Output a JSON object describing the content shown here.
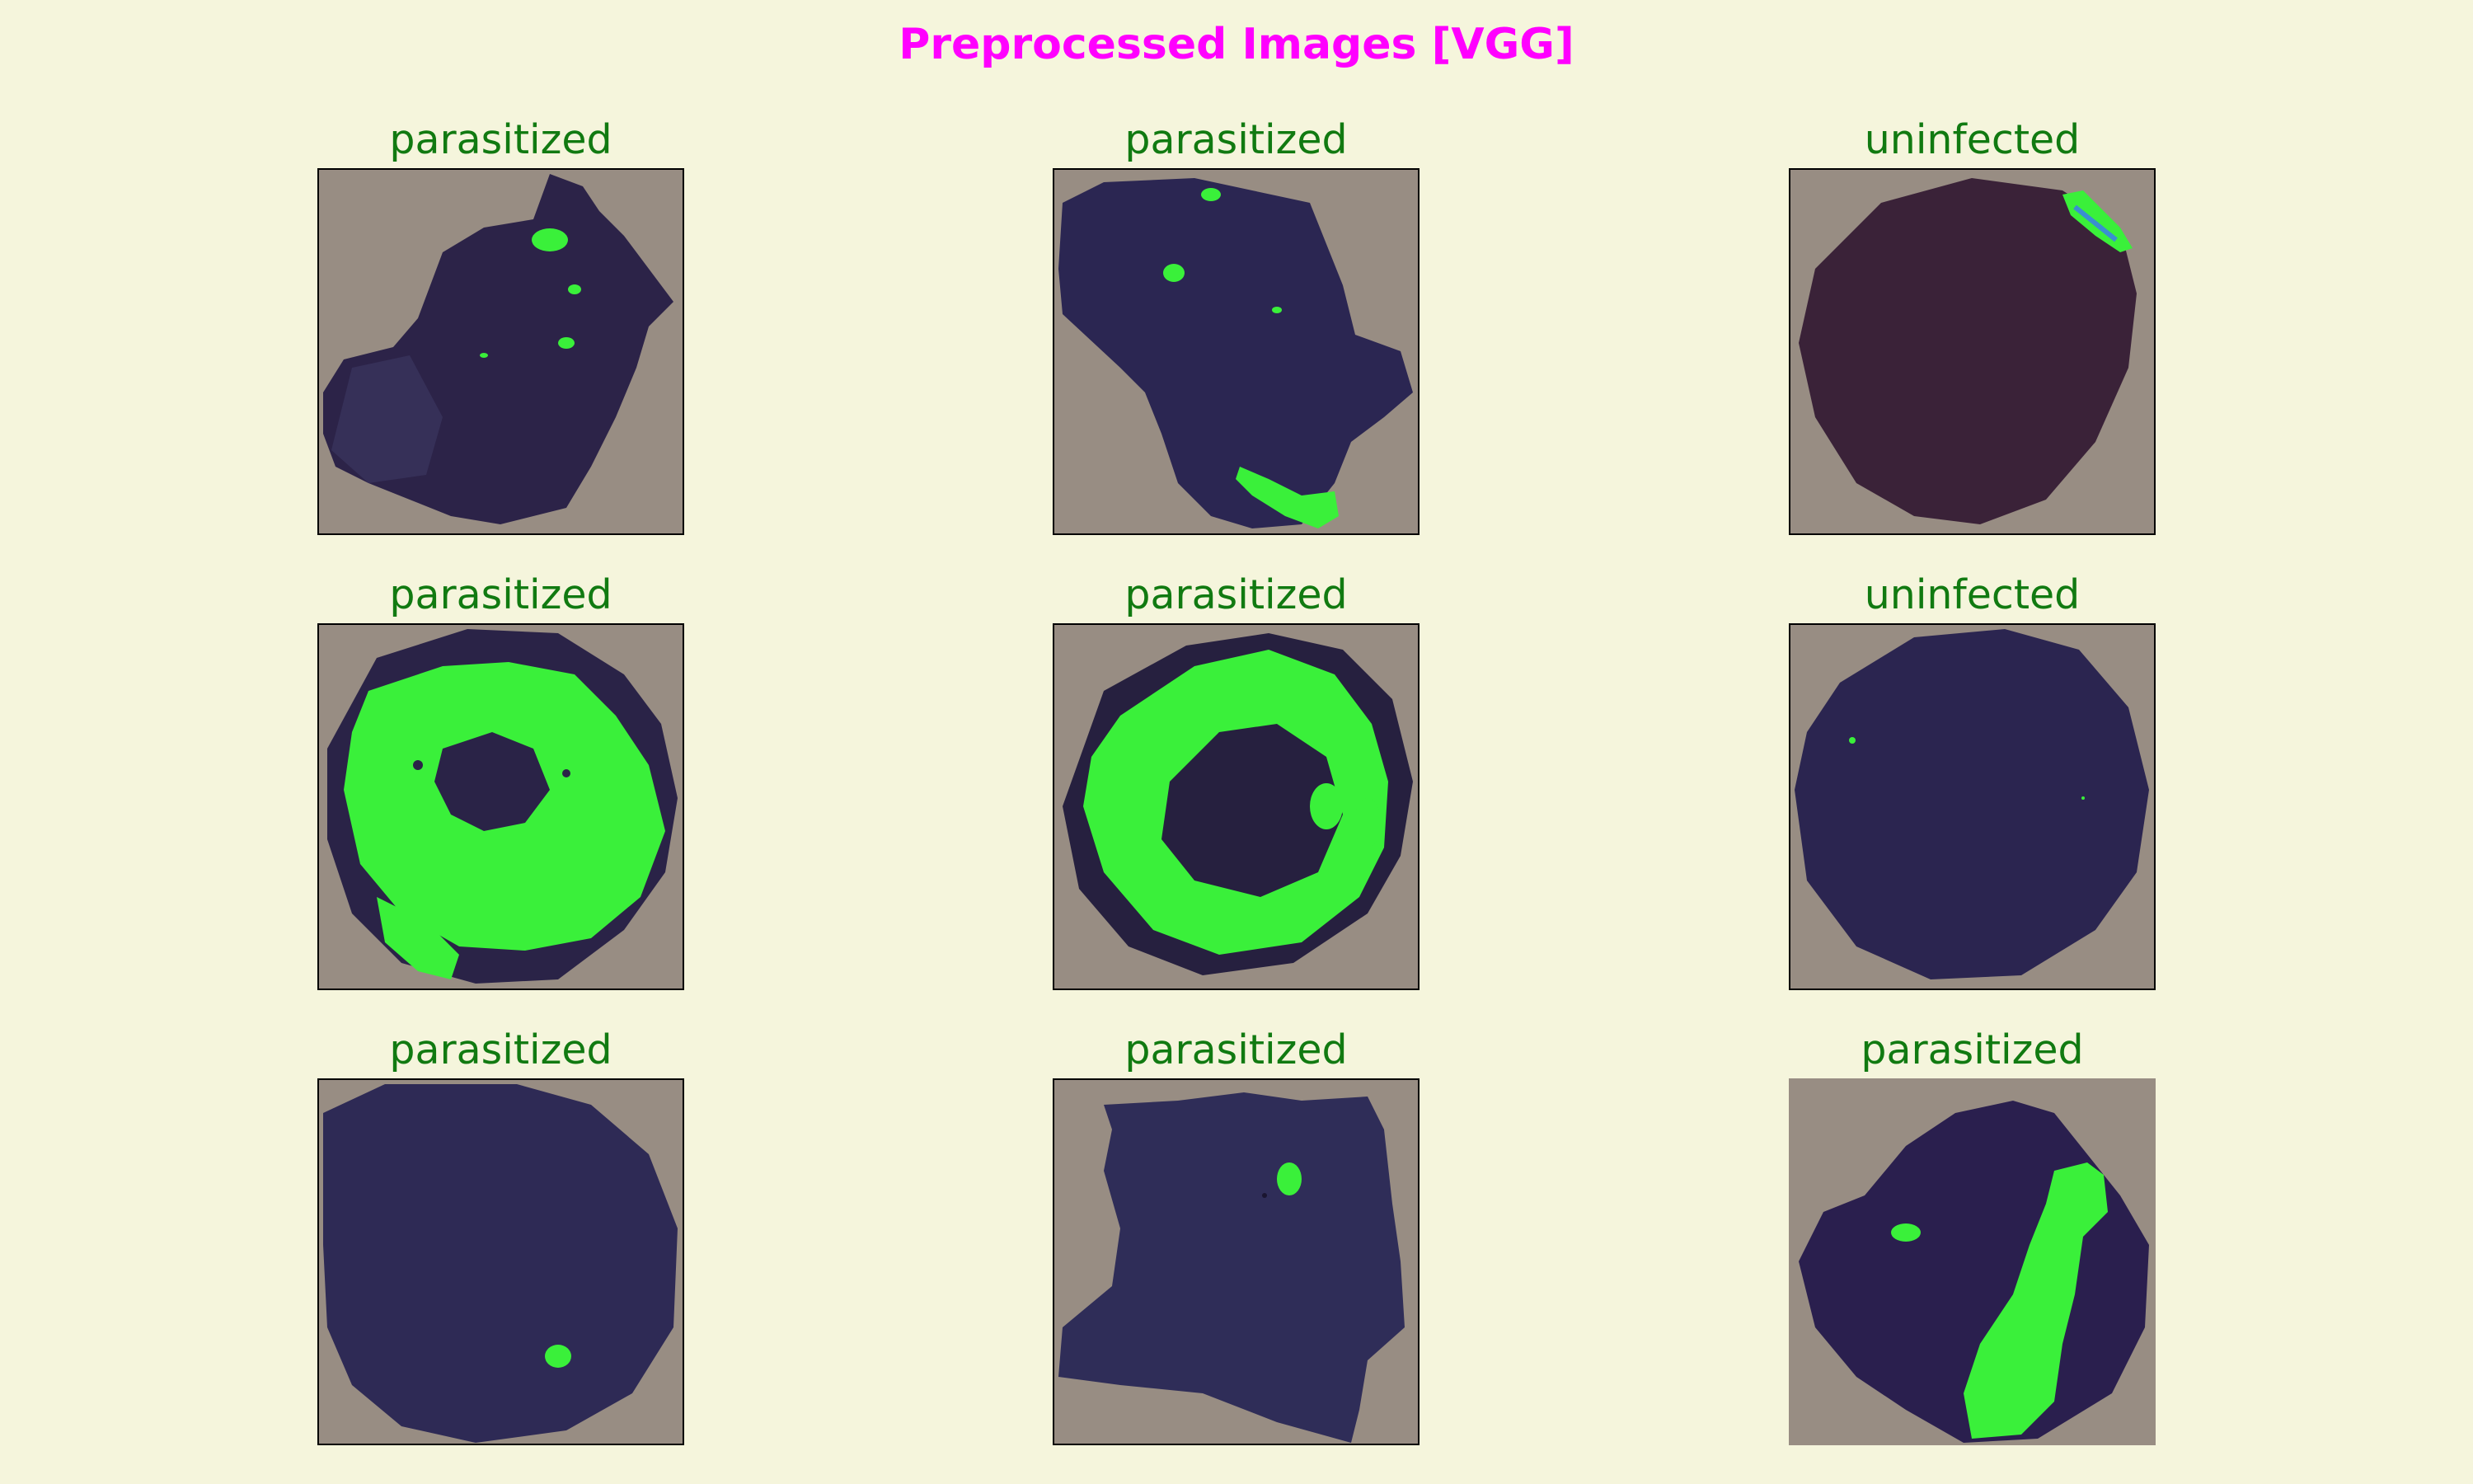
{
  "figure": {
    "title": "Preprocessed Images [VGG]",
    "colors": {
      "background": "#f5f5dc",
      "title": "#ff00ff",
      "label": "#117a11",
      "slide_background": "#988d83",
      "cell": "#2b2248",
      "stain": "#3af03a"
    }
  },
  "panels": [
    {
      "label": "parasitized"
    },
    {
      "label": "parasitized"
    },
    {
      "label": "uninfected"
    },
    {
      "label": "parasitized"
    },
    {
      "label": "parasitized"
    },
    {
      "label": "uninfected"
    },
    {
      "label": "parasitized"
    },
    {
      "label": "parasitized"
    },
    {
      "label": "parasitized"
    }
  ]
}
